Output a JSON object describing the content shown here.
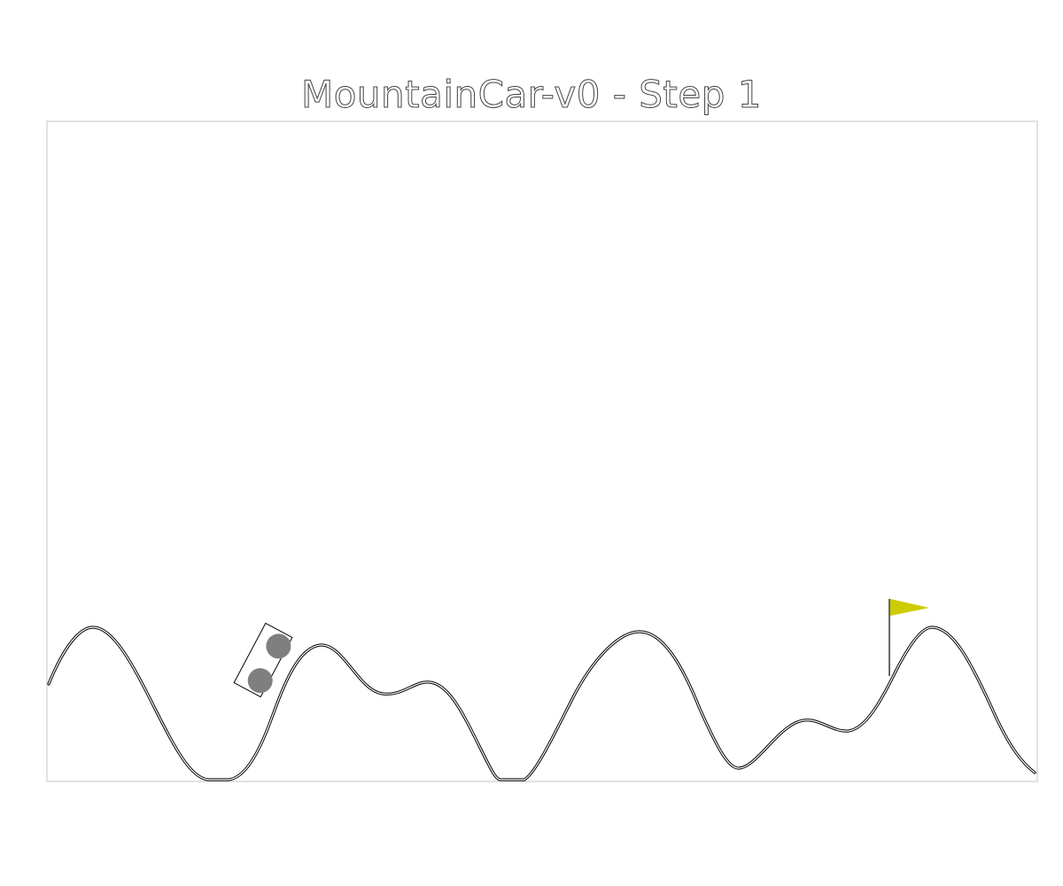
{
  "title": "MountainCar-v0 - Step 1",
  "env": {
    "name": "MountainCar-v0",
    "step": 1
  },
  "colors": {
    "background": "#ffffff",
    "frame": "#d9d9d9",
    "track": "#000000",
    "car_body": "#ffffff",
    "wheels": "#7f7f7f",
    "flag": "#cccc00",
    "flagpole": "#666666"
  },
  "icons": {
    "car": "car-icon",
    "flag": "goal-flag-icon"
  }
}
